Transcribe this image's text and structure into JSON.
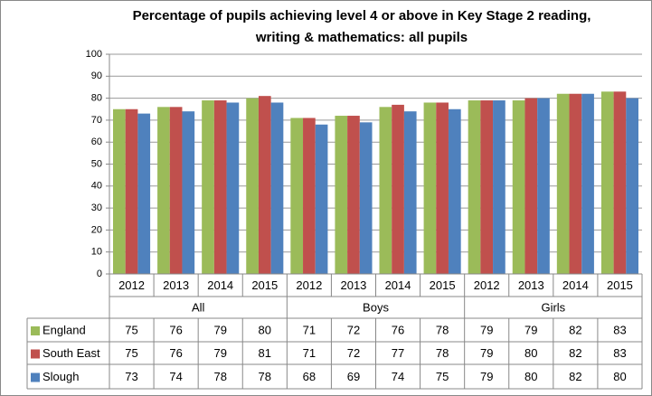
{
  "chart_data": {
    "type": "bar",
    "title": [
      "Percentage of pupils achieving level 4 or above in Key Stage 2 reading,",
      "writing & mathematics: all pupils"
    ],
    "categories": [
      "2012",
      "2013",
      "2014",
      "2015",
      "2012",
      "2013",
      "2014",
      "2015",
      "2012",
      "2013",
      "2014",
      "2015"
    ],
    "groups": [
      "All",
      "Boys",
      "Girls"
    ],
    "series": [
      {
        "name": "England",
        "color": "#9bbb59",
        "values": [
          75,
          76,
          79,
          80,
          71,
          72,
          76,
          78,
          79,
          79,
          82,
          83
        ]
      },
      {
        "name": "South East",
        "color": "#c0504d",
        "values": [
          75,
          76,
          79,
          81,
          71,
          72,
          77,
          78,
          79,
          80,
          82,
          83
        ]
      },
      {
        "name": "Slough",
        "color": "#4f81bd",
        "values": [
          73,
          74,
          78,
          78,
          68,
          69,
          74,
          75,
          79,
          80,
          82,
          80
        ]
      }
    ],
    "ylim": [
      0,
      100
    ],
    "yticks": [
      0,
      10,
      20,
      30,
      40,
      50,
      60,
      70,
      80,
      90,
      100
    ],
    "grid": true
  }
}
